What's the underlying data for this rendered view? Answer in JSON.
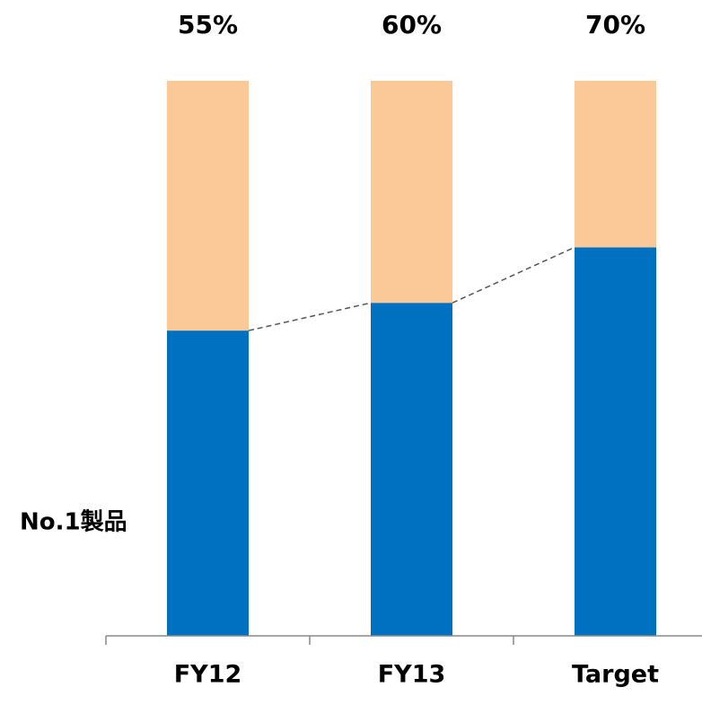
{
  "chart_data": {
    "type": "stacked_bar",
    "categories": [
      "FY12",
      "FY13",
      "Target"
    ],
    "series": [
      {
        "name": "No.1製品",
        "color": "#0070c0",
        "values": [
          55,
          60,
          70
        ],
        "value_labels": [
          "55%",
          "60%",
          "70%"
        ]
      },
      {
        "color": "#fbc997",
        "values": [
          45,
          40,
          30
        ]
      }
    ],
    "ylim": [
      0,
      100
    ]
  }
}
